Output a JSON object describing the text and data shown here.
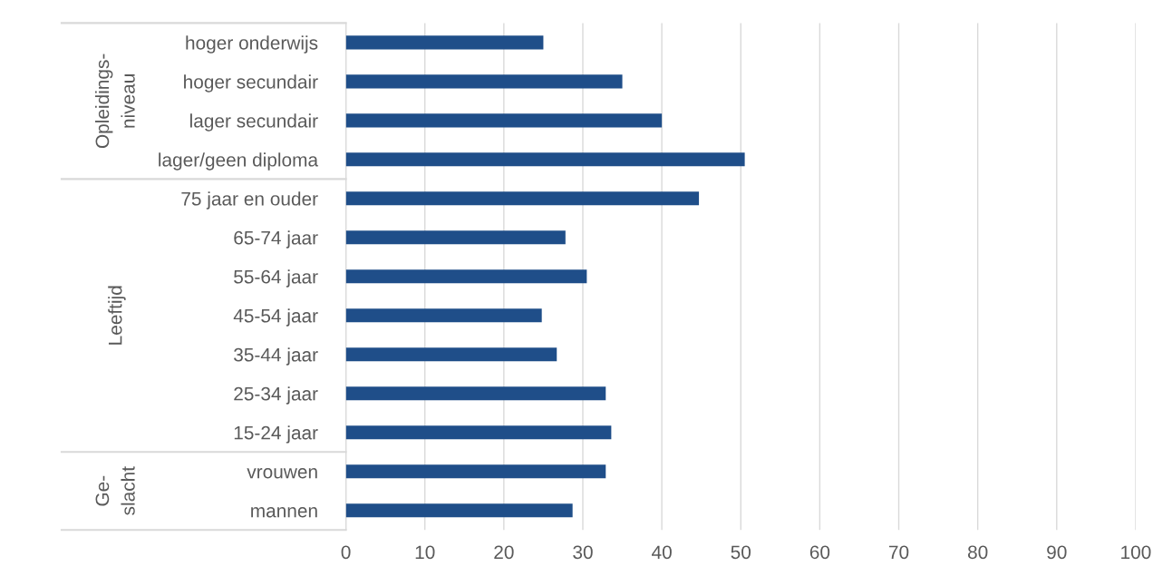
{
  "chart_data": {
    "type": "bar",
    "orientation": "horizontal",
    "categories": [
      "hoger onderwijs",
      "hoger secundair",
      "lager secundair",
      "lager/geen diploma",
      "75 jaar en ouder",
      "65-74 jaar",
      "55-64 jaar",
      "45-54 jaar",
      "35-44 jaar",
      "25-34 jaar",
      "15-24 jaar",
      "vrouwen",
      "mannen"
    ],
    "values": [
      25,
      35,
      40,
      50.5,
      44.7,
      27.8,
      30.5,
      24.8,
      26.7,
      32.9,
      33.6,
      32.9,
      28.7
    ],
    "color": "#1f4e89",
    "xlim": [
      0,
      100
    ],
    "xticks": [
      0,
      10,
      20,
      30,
      40,
      50,
      60,
      70,
      80,
      90,
      100
    ],
    "grid": "x",
    "annotations": [
      "Opleidings-\nniveau",
      "Leeftijd",
      "Ge-\nslacht"
    ]
  }
}
